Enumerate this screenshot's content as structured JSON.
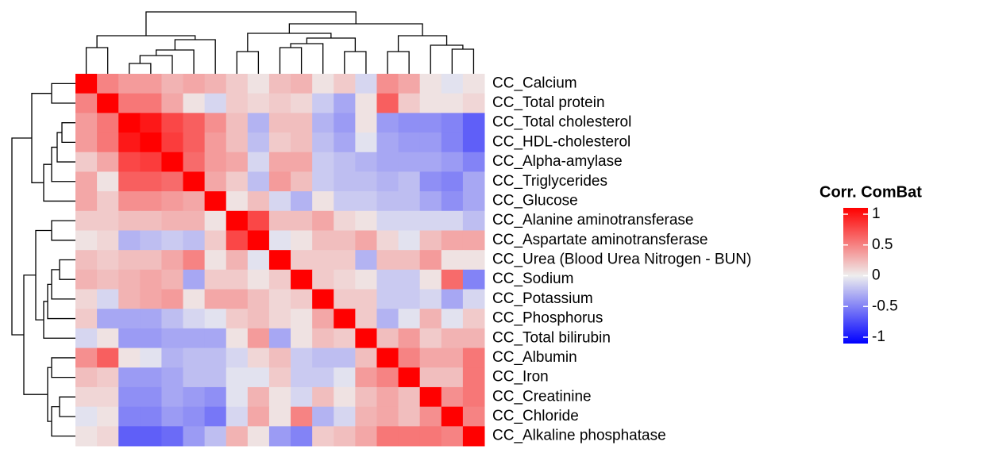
{
  "chart_data": {
    "type": "heatmap",
    "categories": [
      "CC_Calcium",
      "CC_Total protein",
      "CC_Total cholesterol",
      "CC_HDL-cholesterol",
      "CC_Alpha-amylase",
      "CC_Triglycerides",
      "CC_Glucose",
      "CC_Alanine aminotransferase",
      "CC_Aspartate aminotransferase",
      "CC_Urea (Blood Urea Nitrogen - BUN)",
      "CC_Sodium",
      "CC_Potassium",
      "CC_Phosphorus",
      "CC_Total bilirubin",
      "CC_Albumin",
      "CC_Iron",
      "CC_Creatinine",
      "CC_Chloride",
      "CC_Alkaline phosphatase"
    ],
    "values": [
      [
        1,
        0.45,
        0.35,
        0.35,
        0.25,
        0.3,
        0.25,
        0.15,
        0.05,
        0.2,
        0.25,
        0.05,
        0.15,
        -0.1,
        0.4,
        0.3,
        0.05,
        -0.05,
        0.05
      ],
      [
        0.45,
        1,
        0.5,
        0.5,
        0.3,
        0.05,
        -0.1,
        0.15,
        0.1,
        0.15,
        0.1,
        -0.15,
        -0.3,
        0.05,
        0.6,
        0.15,
        0.05,
        0.05,
        0.1
      ],
      [
        0.35,
        0.5,
        1,
        0.9,
        0.7,
        0.6,
        0.4,
        0.2,
        -0.25,
        0.2,
        0.2,
        -0.25,
        -0.35,
        0.05,
        -0.35,
        -0.4,
        -0.4,
        -0.45,
        -0.6
      ],
      [
        0.35,
        0.5,
        0.9,
        1,
        0.75,
        0.6,
        0.35,
        0.2,
        -0.2,
        0.15,
        0.2,
        -0.2,
        -0.3,
        -0.05,
        -0.3,
        -0.35,
        -0.35,
        -0.45,
        -0.6
      ],
      [
        0.15,
        0.3,
        0.7,
        0.75,
        1,
        0.55,
        0.35,
        0.3,
        -0.1,
        0.3,
        0.3,
        -0.15,
        -0.2,
        -0.25,
        -0.3,
        -0.3,
        -0.3,
        -0.35,
        -0.45
      ],
      [
        0.3,
        0.05,
        0.6,
        0.6,
        0.55,
        1,
        0.3,
        0.15,
        -0.2,
        0.35,
        0.2,
        -0.15,
        -0.2,
        -0.2,
        -0.25,
        -0.2,
        -0.4,
        -0.45,
        -0.3
      ],
      [
        0.3,
        0.15,
        0.4,
        0.4,
        0.35,
        0.3,
        1,
        0.05,
        0.2,
        -0.1,
        -0.25,
        0.05,
        -0.15,
        -0.15,
        -0.2,
        -0.2,
        -0.3,
        -0.4,
        -0.3
      ],
      [
        0.15,
        0.15,
        0.2,
        0.2,
        0.25,
        0.25,
        0.05,
        1,
        0.7,
        0.2,
        0.2,
        0.3,
        0.1,
        0.05,
        -0.1,
        -0.1,
        -0.1,
        -0.1,
        -0.2
      ],
      [
        0.05,
        0.1,
        -0.25,
        -0.2,
        -0.15,
        -0.2,
        0.15,
        0.7,
        1,
        -0.05,
        0.05,
        0.2,
        0.2,
        0.3,
        0.1,
        -0.05,
        0.2,
        0.3,
        0.3
      ],
      [
        0.2,
        0.15,
        0.2,
        0.2,
        0.3,
        0.45,
        0.05,
        0.25,
        -0.05,
        1,
        0.15,
        0.15,
        0.15,
        -0.25,
        0.2,
        0.2,
        0.35,
        0.05,
        0.05
      ],
      [
        0.25,
        0.2,
        0.25,
        0.3,
        0.25,
        -0.3,
        0.15,
        0.15,
        0.05,
        0.15,
        1,
        0.15,
        0.1,
        0.05,
        -0.15,
        -0.15,
        0.05,
        0.55,
        -0.45
      ],
      [
        0.1,
        -0.1,
        0.25,
        0.3,
        0.35,
        0.05,
        0.3,
        0.3,
        0.2,
        0.1,
        0.15,
        1,
        0.15,
        0.15,
        -0.15,
        -0.15,
        -0.1,
        -0.3,
        -0.1
      ],
      [
        0.15,
        -0.3,
        -0.3,
        -0.3,
        -0.2,
        -0.1,
        -0.05,
        0.15,
        0.2,
        0.1,
        0.05,
        0.3,
        1,
        0.15,
        -0.25,
        -0.05,
        0.25,
        -0.05,
        0.15
      ],
      [
        -0.1,
        0.05,
        -0.35,
        -0.35,
        -0.3,
        -0.3,
        -0.3,
        0.05,
        0.35,
        -0.3,
        0.05,
        0.2,
        0.15,
        1,
        0.2,
        0.35,
        0.15,
        0.25,
        0.25
      ],
      [
        0.4,
        0.6,
        0.05,
        -0.05,
        -0.25,
        -0.2,
        -0.2,
        -0.1,
        0.1,
        0.2,
        -0.15,
        -0.2,
        -0.2,
        0.2,
        1,
        0.45,
        0.3,
        0.3,
        0.5
      ],
      [
        0.2,
        0.15,
        -0.35,
        -0.35,
        -0.3,
        -0.2,
        -0.2,
        -0.05,
        -0.05,
        0.15,
        -0.15,
        -0.15,
        -0.05,
        0.35,
        0.45,
        1,
        0.2,
        0.2,
        0.5
      ],
      [
        0.1,
        0.1,
        -0.4,
        -0.4,
        -0.3,
        -0.35,
        -0.4,
        -0.05,
        0.25,
        0.05,
        -0.1,
        0.2,
        0.05,
        0.2,
        0.3,
        0.2,
        1,
        0.4,
        0.5
      ],
      [
        -0.05,
        0.05,
        -0.45,
        -0.45,
        -0.35,
        -0.4,
        -0.5,
        -0.1,
        0.3,
        0.05,
        0.45,
        -0.25,
        -0.1,
        0.25,
        0.3,
        0.2,
        0.4,
        1,
        0.45
      ],
      [
        0.05,
        0.1,
        -0.6,
        -0.6,
        -0.55,
        -0.35,
        -0.2,
        0.25,
        0.05,
        -0.35,
        -0.45,
        0.15,
        0.2,
        0.3,
        0.5,
        0.5,
        0.5,
        0.45,
        1
      ]
    ],
    "colors": [
      "#0000FF",
      "#EEEEEE",
      "#FF0000"
    ],
    "zlim": [
      -1,
      1
    ],
    "legend_title": "Corr. ComBat",
    "legend_ticks": [
      1,
      0.5,
      0,
      -0.5,
      -1
    ]
  }
}
